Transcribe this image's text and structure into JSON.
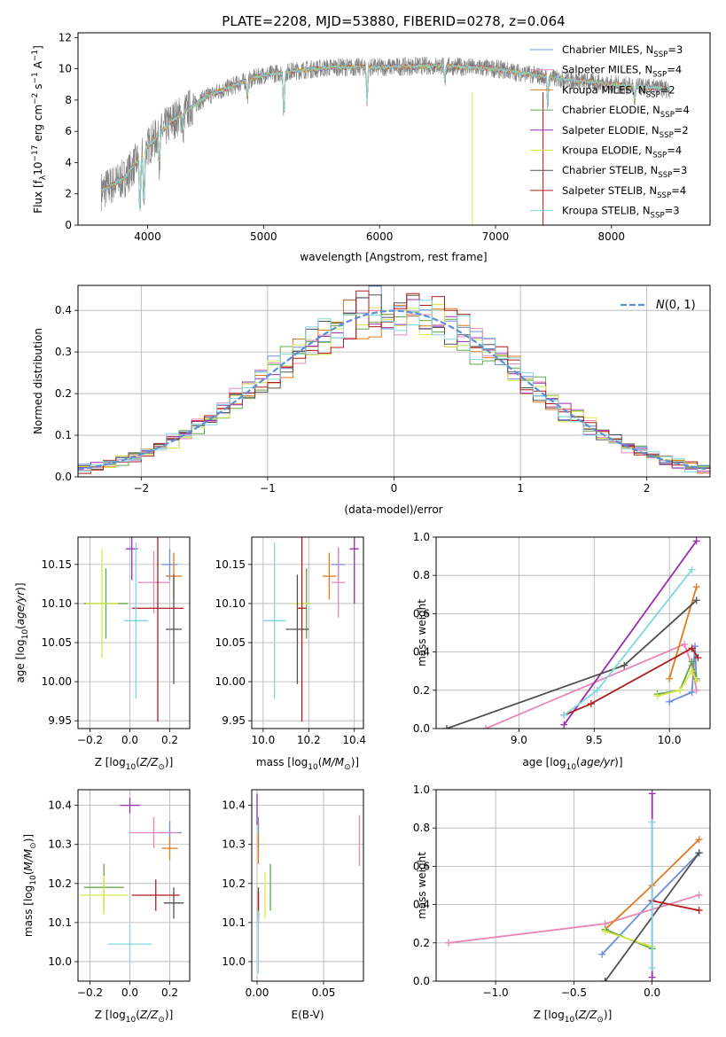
{
  "title": "PLATE=2208, MJD=53880, FIBERID=0278, z=0.064",
  "colors": {
    "Chabrier MILES": "#6a8fd8",
    "Salpeter MILES": "#e986b8",
    "Kroupa MILES": "#e07a1f",
    "Chabrier ELODIE": "#63a54a",
    "Salpeter ELODIE": "#9a2db0",
    "Kroupa ELODIE": "#d7e84a",
    "Chabrier STELIB": "#505050",
    "Salpeter STELIB": "#b01c1c",
    "Kroupa STELIB": "#7fd8dc",
    "data": "#808080",
    "gaussian": "#5b8fd6",
    "grid": "#b0b0b0"
  },
  "chart_data": [
    {
      "id": "spectrum",
      "type": "line",
      "title": "PLATE=2208, MJD=53880, FIBERID=0278, z=0.064",
      "xlabel": "wavelength [Angstrom, rest frame]",
      "ylabel": "Flux [f_λ 10^-17 erg cm^-2 s^-1 A^-1]",
      "xlim": [
        3400,
        8850
      ],
      "ylim": [
        0,
        12.3
      ],
      "xticks": [
        4000,
        5000,
        6000,
        7000,
        8000
      ],
      "yticks": [
        0,
        2,
        4,
        6,
        8,
        10,
        12
      ],
      "legend_position": "right",
      "legend": [
        {
          "name": "Chabrier MILES",
          "nssp": "3"
        },
        {
          "name": "Salpeter MILES",
          "nssp": "4"
        },
        {
          "name": "Kroupa MILES",
          "nssp": "2"
        },
        {
          "name": "Chabrier ELODIE",
          "nssp": "4"
        },
        {
          "name": "Salpeter ELODIE",
          "nssp": "2"
        },
        {
          "name": "Kroupa ELODIE",
          "nssp": "4"
        },
        {
          "name": "Chabrier STELIB",
          "nssp": "3"
        },
        {
          "name": "Salpeter STELIB",
          "nssp": "4"
        },
        {
          "name": "Kroupa STELIB",
          "nssp": "3"
        }
      ],
      "continuum": {
        "x": [
          3600,
          3800,
          4000,
          4200,
          4500,
          4800,
          5000,
          5300,
          5600,
          6000,
          6500,
          7000,
          7500,
          8000,
          8300,
          8500
        ],
        "y": [
          2.2,
          3.0,
          5.0,
          6.6,
          8.2,
          9.1,
          9.6,
          9.9,
          10.1,
          10.1,
          10.2,
          10.0,
          9.4,
          9.0,
          8.8,
          8.7
        ]
      },
      "absorption_features": [
        {
          "x": 3934,
          "y": 0.8
        },
        {
          "x": 3969,
          "y": 1.2
        },
        {
          "x": 4102,
          "y": 4.2
        },
        {
          "x": 4305,
          "y": 6.0
        },
        {
          "x": 4861,
          "y": 8.2
        },
        {
          "x": 5175,
          "y": 7.0
        },
        {
          "x": 5893,
          "y": 8.0
        },
        {
          "x": 6563,
          "y": 9.2
        },
        {
          "x": 7450,
          "y": 7.8
        },
        {
          "x": 8200,
          "y": 8.0
        }
      ],
      "spikes": [
        {
          "x": 6800,
          "y": 0
        },
        {
          "x": 7410,
          "y": 0
        }
      ]
    },
    {
      "id": "residuals",
      "type": "histogram",
      "xlabel": "(data-model)/error",
      "ylabel": "Normed distribution",
      "xlim": [
        -2.5,
        2.5
      ],
      "ylim": [
        0,
        0.46
      ],
      "xticks": [
        -2,
        -1,
        0,
        1,
        2
      ],
      "yticks": [
        0.0,
        0.1,
        0.2,
        0.3,
        0.4
      ],
      "gaussian_label": "N(0,1)",
      "legend_position": "top-right",
      "bin_width": 0.1
    },
    {
      "id": "age_vs_Z",
      "type": "scatter",
      "xlabel": "Z [log10(Z/Z⊙)]",
      "ylabel": "age  [log10(age/yr)]",
      "xlim": [
        -0.26,
        0.3
      ],
      "ylim": [
        9.94,
        10.185
      ],
      "xticks": [
        -0.2,
        0.0,
        0.2
      ],
      "yticks": [
        9.95,
        10.0,
        10.05,
        10.1,
        10.15
      ],
      "points": [
        {
          "series": "Chabrier MILES",
          "x": 0.2,
          "y": 10.15,
          "xerr": 0.04,
          "yerr": 0.02
        },
        {
          "series": "Salpeter MILES",
          "x": 0.12,
          "y": 10.127,
          "xerr": 0.08,
          "yerr": 0.04
        },
        {
          "series": "Kroupa MILES",
          "x": 0.22,
          "y": 10.135,
          "xerr": 0.04,
          "yerr": 0.03
        },
        {
          "series": "Chabrier ELODIE",
          "x": -0.12,
          "y": 10.1,
          "xerr": 0.11,
          "yerr": 0.045
        },
        {
          "series": "Salpeter ELODIE",
          "x": 0.01,
          "y": 10.17,
          "xerr": 0.03,
          "yerr": 0.04
        },
        {
          "series": "Kroupa ELODIE",
          "x": -0.14,
          "y": 10.1,
          "xerr": 0.08,
          "yerr": 0.07
        },
        {
          "series": "Chabrier STELIB",
          "x": 0.22,
          "y": 10.067,
          "xerr": 0.04,
          "yerr": 0.07
        },
        {
          "series": "Salpeter STELIB",
          "x": 0.14,
          "y": 10.094,
          "xerr": 0.13,
          "yerr": 0.145
        },
        {
          "series": "Kroupa STELIB",
          "x": 0.03,
          "y": 10.078,
          "xerr": 0.06,
          "yerr": 0.1
        }
      ]
    },
    {
      "id": "age_vs_mass",
      "type": "scatter",
      "xlabel": "mass [log10(M/M⊙)]",
      "ylabel": "",
      "xlim": [
        9.95,
        10.44
      ],
      "ylim": [
        9.94,
        10.185
      ],
      "xticks": [
        10.0,
        10.2,
        10.4
      ],
      "yticks": [
        9.95,
        10.0,
        10.05,
        10.1,
        10.15
      ],
      "points": [
        {
          "series": "Chabrier MILES",
          "x": 10.33,
          "y": 10.15,
          "xerr": 0.03,
          "yerr": 0.02
        },
        {
          "series": "Salpeter MILES",
          "x": 10.33,
          "y": 10.127,
          "xerr": 0.03,
          "yerr": 0.045
        },
        {
          "series": "Kroupa MILES",
          "x": 10.29,
          "y": 10.135,
          "xerr": 0.03,
          "yerr": 0.03
        },
        {
          "series": "Chabrier ELODIE",
          "x": 10.19,
          "y": 10.1,
          "xerr": 0.02,
          "yerr": 0.045
        },
        {
          "series": "Salpeter ELODIE",
          "x": 10.4,
          "y": 10.17,
          "xerr": 0.02,
          "yerr": 0.07
        },
        {
          "series": "Kroupa ELODIE",
          "x": 10.17,
          "y": 10.1,
          "xerr": 0.04,
          "yerr": 0.04
        },
        {
          "series": "Chabrier STELIB",
          "x": 10.15,
          "y": 10.067,
          "xerr": 0.05,
          "yerr": 0.07
        },
        {
          "series": "Salpeter STELIB",
          "x": 10.17,
          "y": 10.094,
          "xerr": 0.02,
          "yerr": 0.145
        },
        {
          "series": "Kroupa STELIB",
          "x": 10.05,
          "y": 10.078,
          "xerr": 0.05,
          "yerr": 0.1
        }
      ]
    },
    {
      "id": "weight_vs_age",
      "type": "line",
      "xlabel": "age  [log10(age/yr)]",
      "ylabel": "mass weight",
      "xlim": [
        8.45,
        10.27
      ],
      "ylim": [
        0,
        1.0
      ],
      "xticks": [
        9.0,
        9.5,
        10.0
      ],
      "yticks": [
        0.0,
        0.2,
        0.4,
        0.6,
        0.8,
        1.0
      ],
      "series": [
        {
          "name": "Chabrier MILES",
          "x": [
            10.0,
            10.15,
            10.17,
            10.18
          ],
          "y": [
            0.14,
            0.19,
            0.43,
            0.25
          ]
        },
        {
          "name": "Salpeter MILES",
          "x": [
            8.78,
            10.1,
            10.15,
            10.18
          ],
          "y": [
            0.0,
            0.44,
            0.33,
            0.2
          ]
        },
        {
          "name": "Kroupa MILES",
          "x": [
            10.0,
            10.18
          ],
          "y": [
            0.26,
            0.74
          ]
        },
        {
          "name": "Chabrier ELODIE",
          "x": [
            9.92,
            10.07,
            10.15,
            10.18
          ],
          "y": [
            0.18,
            0.2,
            0.35,
            0.26
          ]
        },
        {
          "name": "Salpeter ELODIE",
          "x": [
            9.3,
            10.18
          ],
          "y": [
            0.02,
            0.98
          ]
        },
        {
          "name": "Kroupa ELODIE",
          "x": [
            9.92,
            10.07,
            10.15,
            10.18
          ],
          "y": [
            0.17,
            0.2,
            0.3,
            0.25
          ]
        },
        {
          "name": "Chabrier STELIB",
          "x": [
            8.52,
            9.7,
            10.18
          ],
          "y": [
            0.0,
            0.33,
            0.67
          ]
        },
        {
          "name": "Salpeter STELIB",
          "x": [
            9.3,
            9.48,
            10.15,
            10.19
          ],
          "y": [
            0.07,
            0.13,
            0.42,
            0.37
          ]
        },
        {
          "name": "Kroupa STELIB",
          "x": [
            9.3,
            9.52,
            10.15
          ],
          "y": [
            0.07,
            0.2,
            0.83
          ]
        }
      ]
    },
    {
      "id": "mass_vs_Z",
      "type": "scatter",
      "xlabel": "Z [log10(Z/Z⊙)]",
      "ylabel": "mass [log10(M/M⊙)]",
      "xlim": [
        -0.26,
        0.3
      ],
      "ylim": [
        9.95,
        10.44
      ],
      "xticks": [
        -0.2,
        0.0,
        0.2
      ],
      "yticks": [
        10.0,
        10.1,
        10.2,
        10.3,
        10.4
      ],
      "points": [
        {
          "series": "Chabrier MILES",
          "x": 0.2,
          "y": 10.33,
          "xerr": 0.06,
          "yerr": 0.03
        },
        {
          "series": "Salpeter MILES",
          "x": 0.12,
          "y": 10.33,
          "xerr": 0.12,
          "yerr": 0.04
        },
        {
          "series": "Kroupa MILES",
          "x": 0.2,
          "y": 10.29,
          "xerr": 0.04,
          "yerr": 0.03
        },
        {
          "series": "Chabrier ELODIE",
          "x": -0.13,
          "y": 10.19,
          "xerr": 0.1,
          "yerr": 0.06
        },
        {
          "series": "Salpeter ELODIE",
          "x": 0.0,
          "y": 10.4,
          "xerr": 0.05,
          "yerr": 0.02
        },
        {
          "series": "Kroupa ELODIE",
          "x": -0.13,
          "y": 10.17,
          "xerr": 0.12,
          "yerr": 0.05
        },
        {
          "series": "Chabrier STELIB",
          "x": 0.22,
          "y": 10.15,
          "xerr": 0.05,
          "yerr": 0.04
        },
        {
          "series": "Salpeter STELIB",
          "x": 0.13,
          "y": 10.17,
          "xerr": 0.12,
          "yerr": 0.04
        },
        {
          "series": "Kroupa STELIB",
          "x": 0.0,
          "y": 10.045,
          "xerr": 0.11,
          "yerr": 0.05
        }
      ]
    },
    {
      "id": "mass_vs_EBV",
      "type": "scatter",
      "xlabel": "E(B-V)",
      "ylabel": "",
      "xlim": [
        -0.004,
        0.08
      ],
      "ylim": [
        9.95,
        10.44
      ],
      "xticks": [
        0.0,
        0.05
      ],
      "yticks": [
        10.0,
        10.1,
        10.2,
        10.3,
        10.4
      ],
      "points": [
        {
          "series": "Chabrier MILES",
          "x": 0.001,
          "y": 10.33,
          "xerr": 0.0,
          "yerr": 0.04
        },
        {
          "series": "Salpeter MILES",
          "x": 0.077,
          "y": 10.31,
          "xerr": 0.0,
          "yerr": 0.065
        },
        {
          "series": "Kroupa MILES",
          "x": 0.001,
          "y": 10.29,
          "xerr": 0.0,
          "yerr": 0.04
        },
        {
          "series": "Chabrier ELODIE",
          "x": 0.01,
          "y": 10.19,
          "xerr": 0.0,
          "yerr": 0.06
        },
        {
          "series": "Salpeter ELODIE",
          "x": 0.0,
          "y": 10.39,
          "xerr": 0.0,
          "yerr": 0.04
        },
        {
          "series": "Kroupa ELODIE",
          "x": 0.006,
          "y": 10.17,
          "xerr": 0.0,
          "yerr": 0.06
        },
        {
          "series": "Chabrier STELIB",
          "x": 0.001,
          "y": 10.15,
          "xerr": 0.0,
          "yerr": 0.04
        },
        {
          "series": "Salpeter STELIB",
          "x": 0.001,
          "y": 10.14,
          "xerr": 0.0,
          "yerr": 0.04
        },
        {
          "series": "Kroupa STELIB",
          "x": 0.001,
          "y": 10.05,
          "xerr": 0.0,
          "yerr": 0.08
        }
      ]
    },
    {
      "id": "weight_vs_Z",
      "type": "line",
      "xlabel": "Z [log10(Z/Z⊙)]",
      "ylabel": "mass weight",
      "xlim": [
        -1.38,
        0.37
      ],
      "ylim": [
        0,
        1.0
      ],
      "xticks": [
        -1.0,
        -0.5,
        0.0
      ],
      "yticks": [
        0.0,
        0.2,
        0.4,
        0.6,
        0.8,
        1.0
      ],
      "series": [
        {
          "name": "Chabrier MILES",
          "x": [
            -0.32,
            0.0,
            0.3
          ],
          "y": [
            0.14,
            0.42,
            0.67
          ]
        },
        {
          "name": "Salpeter MILES",
          "x": [
            -1.3,
            -0.3,
            0.3
          ],
          "y": [
            0.2,
            0.3,
            0.45
          ]
        },
        {
          "name": "Kroupa MILES",
          "x": [
            -0.3,
            0.0,
            0.3
          ],
          "y": [
            0.27,
            0.5,
            0.74
          ]
        },
        {
          "name": "Chabrier ELODIE",
          "x": [
            -0.3,
            0.0
          ],
          "y": [
            0.27,
            0.17
          ]
        },
        {
          "name": "Salpeter ELODIE",
          "x": [
            0.0,
            0.0
          ],
          "y": [
            0.02,
            0.98
          ]
        },
        {
          "name": "Kroupa ELODIE",
          "x": [
            -0.3,
            0.0
          ],
          "y": [
            0.26,
            0.18
          ]
        },
        {
          "name": "Chabrier STELIB",
          "x": [
            -0.3,
            0.3
          ],
          "y": [
            0.0,
            0.67
          ]
        },
        {
          "name": "Salpeter STELIB",
          "x": [
            0.0,
            0.3
          ],
          "y": [
            0.42,
            0.37
          ]
        },
        {
          "name": "Kroupa STELIB",
          "x": [
            0.0,
            0.0
          ],
          "y": [
            0.07,
            0.83
          ]
        }
      ]
    }
  ]
}
